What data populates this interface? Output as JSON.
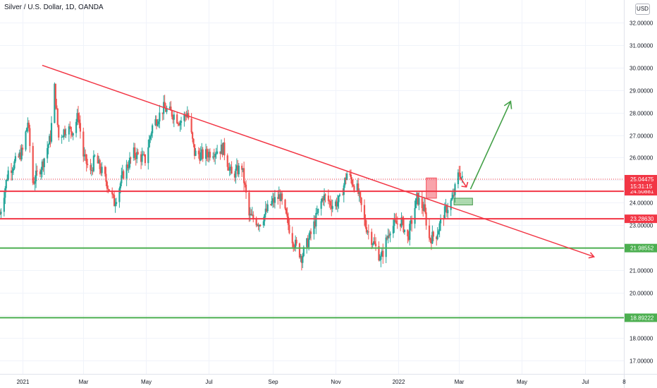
{
  "header": {
    "title": "Silver / U.S. Dollar, 1D, OANDA",
    "currency_button": "USD"
  },
  "colors": {
    "up": "#26a69a",
    "down": "#ef5350",
    "trendline": "#f23645",
    "support_red": "#f23645",
    "support_green": "#4caf50",
    "grid": "#f0f3fa",
    "last_price_badge": "#f23645",
    "axis_text": "#131722"
  },
  "chart_data": {
    "type": "candlestick",
    "symbol": "Silver / U.S. Dollar",
    "interval": "1D",
    "source": "OANDA",
    "ylim": [
      16.4,
      33.0
    ],
    "y_ticks": [
      "17.00000",
      "18.00000",
      "19.00000",
      "20.00000",
      "21.00000",
      "22.00000",
      "23.00000",
      "24.00000",
      "25.00000",
      "26.00000",
      "27.00000",
      "28.00000",
      "29.00000",
      "30.00000",
      "31.00000",
      "32.00000"
    ],
    "y_tick_values": [
      17,
      18,
      19,
      20,
      21,
      22,
      23,
      24,
      25,
      26,
      27,
      28,
      29,
      30,
      31,
      32
    ],
    "x_range": [
      "2020-12-10",
      "2022-08-08"
    ],
    "x_ticks": [
      {
        "label": "2021",
        "date": "2021-01-01"
      },
      {
        "label": "Mar",
        "date": "2021-03-01"
      },
      {
        "label": "May",
        "date": "2021-05-01"
      },
      {
        "label": "Jul",
        "date": "2021-07-01"
      },
      {
        "label": "Sep",
        "date": "2021-09-01"
      },
      {
        "label": "Nov",
        "date": "2021-11-01"
      },
      {
        "label": "2022",
        "date": "2022-01-01"
      },
      {
        "label": "Mar",
        "date": "2022-03-01"
      },
      {
        "label": "May",
        "date": "2022-05-01"
      },
      {
        "label": "Jul",
        "date": "2022-07-01"
      },
      {
        "label": "8",
        "date": "2022-08-08"
      }
    ],
    "price_path": [
      [
        "2020-12-10",
        23.5
      ],
      [
        "2020-12-18",
        25.4
      ],
      [
        "2020-12-25",
        25.8
      ],
      [
        "2021-01-01",
        26.3
      ],
      [
        "2021-01-06",
        27.6
      ],
      [
        "2021-01-11",
        24.9
      ],
      [
        "2021-01-20",
        25.7
      ],
      [
        "2021-01-28",
        26.9
      ],
      [
        "2021-02-01",
        29.1
      ],
      [
        "2021-02-05",
        26.9
      ],
      [
        "2021-02-12",
        27.3
      ],
      [
        "2021-02-19",
        27.2
      ],
      [
        "2021-02-24",
        27.9
      ],
      [
        "2021-03-01",
        26.1
      ],
      [
        "2021-03-08",
        25.3
      ],
      [
        "2021-03-12",
        26.0
      ],
      [
        "2021-03-22",
        25.1
      ],
      [
        "2021-03-31",
        24.0
      ],
      [
        "2021-04-09",
        25.3
      ],
      [
        "2021-04-19",
        26.2
      ],
      [
        "2021-04-30",
        25.9
      ],
      [
        "2021-05-07",
        27.4
      ],
      [
        "2021-05-18",
        28.2
      ],
      [
        "2021-05-28",
        27.9
      ],
      [
        "2021-06-03",
        27.6
      ],
      [
        "2021-06-10",
        28.0
      ],
      [
        "2021-06-17",
        26.2
      ],
      [
        "2021-06-25",
        26.1
      ],
      [
        "2021-07-06",
        26.3
      ],
      [
        "2021-07-15",
        26.4
      ],
      [
        "2021-07-23",
        25.2
      ],
      [
        "2021-08-02",
        25.6
      ],
      [
        "2021-08-09",
        23.4
      ],
      [
        "2021-08-19",
        23.1
      ],
      [
        "2021-08-31",
        24.0
      ],
      [
        "2021-09-08",
        24.3
      ],
      [
        "2021-09-20",
        22.4
      ],
      [
        "2021-09-29",
        21.6
      ],
      [
        "2021-10-08",
        22.6
      ],
      [
        "2021-10-20",
        24.3
      ],
      [
        "2021-10-29",
        23.9
      ],
      [
        "2021-11-05",
        24.1
      ],
      [
        "2021-11-12",
        25.3
      ],
      [
        "2021-11-22",
        24.6
      ],
      [
        "2021-11-30",
        23.0
      ],
      [
        "2021-12-09",
        22.1
      ],
      [
        "2021-12-15",
        21.5
      ],
      [
        "2021-12-24",
        22.9
      ],
      [
        "2022-01-04",
        23.2
      ],
      [
        "2022-01-10",
        22.4
      ],
      [
        "2022-01-19",
        24.2
      ],
      [
        "2022-01-26",
        23.7
      ],
      [
        "2022-01-31",
        22.4
      ],
      [
        "2022-02-07",
        22.6
      ],
      [
        "2022-02-14",
        23.5
      ],
      [
        "2022-02-23",
        24.2
      ],
      [
        "2022-03-01",
        25.4
      ],
      [
        "2022-03-04",
        25.0
      ]
    ],
    "horizontal_lines": [
      {
        "price": 24.50881,
        "label": "24.50881",
        "color": "#f23645"
      },
      {
        "price": 23.2863,
        "label": "23.28630",
        "color": "#f23645"
      },
      {
        "price": 21.98552,
        "label": "21.98552",
        "color": "#4caf50"
      },
      {
        "price": 18.89222,
        "label": "18.89222",
        "color": "#4caf50"
      }
    ],
    "trendline": {
      "from": [
        "2021-01-20",
        30.1
      ],
      "to": [
        "2022-07-10",
        21.6
      ],
      "color": "#f23645"
    },
    "last_price": {
      "price": 25.04475,
      "label": "25.04475",
      "countdown": "15:31:15"
    },
    "annotations": {
      "red_box": {
        "from": [
          "2022-01-28",
          25.1
        ],
        "to": [
          "2022-02-07",
          24.2
        ]
      },
      "green_box": {
        "from": [
          "2022-02-24",
          24.2
        ],
        "to": [
          "2022-03-14",
          23.9
        ]
      },
      "red_arrow_down": {
        "at": [
          "2022-03-08",
          24.7
        ]
      },
      "green_arrow": {
        "from": [
          "2022-03-12",
          24.6
        ],
        "to": [
          "2022-04-20",
          28.5
        ]
      }
    }
  }
}
